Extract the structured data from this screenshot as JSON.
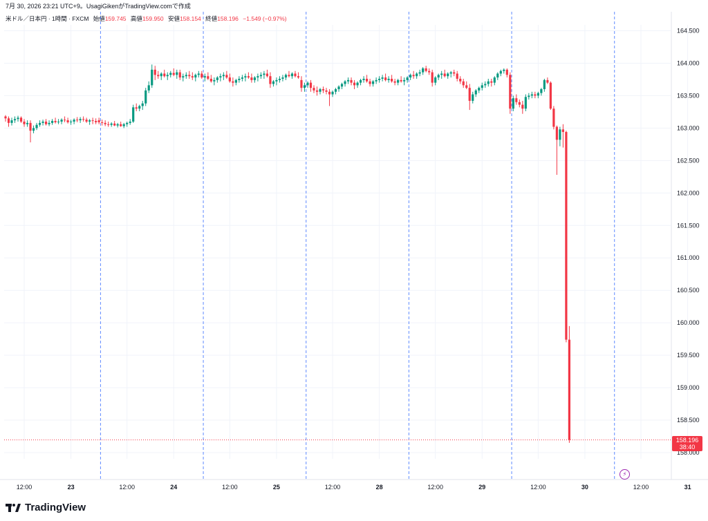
{
  "header": {
    "caption": "7月 30, 2026 23:21 UTC+9。UsagiGikenがTradingView.comで作成",
    "symbol": "米ドル／日本円 · 1時間 · FXCM",
    "open_label": "始値",
    "open_value": "159.745",
    "high_label": "高値",
    "high_value": "159.950",
    "low_label": "安値",
    "low_value": "158.154",
    "close_label": "終値",
    "close_value": "158.196",
    "change": "−1.549 (−0.97%)"
  },
  "price_tag": {
    "price": "158.196",
    "countdown": "38:40"
  },
  "logo_text": "TradingView",
  "colors": {
    "up": "#089981",
    "down": "#f23645",
    "session_line": "#2962ff",
    "text": "#131722",
    "grid": "#f0f3fa"
  },
  "chart_data": {
    "type": "candlestick",
    "y_ticks": [
      "158.000",
      "158.500",
      "159.000",
      "159.500",
      "160.000",
      "160.500",
      "161.000",
      "161.500",
      "162.000",
      "162.500",
      "163.000",
      "163.500",
      "164.000",
      "164.500"
    ],
    "ylim": [
      157.95,
      164.75
    ],
    "x_ticks": [
      {
        "label": "12:00",
        "idx": 6
      },
      {
        "label": "23",
        "idx": 21
      },
      {
        "label": "12:00",
        "idx": 39
      },
      {
        "label": "24",
        "idx": 54
      },
      {
        "label": "12:00",
        "idx": 72
      },
      {
        "label": "25",
        "idx": 87
      },
      {
        "label": "12:00",
        "idx": 105
      },
      {
        "label": "28",
        "idx": 120
      },
      {
        "label": "12:00",
        "idx": 138
      },
      {
        "label": "29",
        "idx": 153
      },
      {
        "label": "12:00",
        "idx": 171
      },
      {
        "label": "30",
        "idx": 186
      },
      {
        "label": "12:00",
        "idx": 204
      },
      {
        "label": "31",
        "idx": 219
      }
    ],
    "session_breaks": [
      30.5,
      63.5,
      96.5,
      129.5,
      162.5,
      195.5
    ],
    "last_price": 158.196,
    "candles": [
      [
        163.18,
        163.2,
        163.1,
        163.15
      ],
      [
        163.15,
        163.18,
        163.02,
        163.08
      ],
      [
        163.08,
        163.16,
        163.04,
        163.12
      ],
      [
        163.12,
        163.18,
        163.08,
        163.14
      ],
      [
        163.14,
        163.19,
        163.1,
        163.16
      ],
      [
        163.16,
        163.18,
        163.08,
        163.1
      ],
      [
        163.1,
        163.14,
        163.02,
        163.06
      ],
      [
        163.06,
        163.12,
        163.02,
        163.08
      ],
      [
        163.08,
        163.12,
        162.78,
        162.96
      ],
      [
        162.96,
        163.04,
        162.92,
        163.0
      ],
      [
        163.0,
        163.08,
        162.97,
        163.05
      ],
      [
        163.05,
        163.12,
        163.02,
        163.08
      ],
      [
        163.08,
        163.13,
        163.04,
        163.1
      ],
      [
        163.1,
        163.14,
        163.04,
        163.06
      ],
      [
        163.06,
        163.12,
        163.03,
        163.08
      ],
      [
        163.08,
        163.14,
        163.05,
        163.11
      ],
      [
        163.11,
        163.16,
        163.07,
        163.09
      ],
      [
        163.09,
        163.14,
        163.06,
        163.1
      ],
      [
        163.1,
        163.15,
        163.06,
        163.13
      ],
      [
        163.13,
        163.18,
        163.09,
        163.12
      ],
      [
        163.12,
        163.16,
        163.07,
        163.09
      ],
      [
        163.09,
        163.13,
        163.05,
        163.1
      ],
      [
        163.1,
        163.15,
        163.06,
        163.13
      ],
      [
        163.13,
        163.17,
        163.09,
        163.12
      ],
      [
        163.12,
        163.17,
        163.08,
        163.14
      ],
      [
        163.14,
        163.18,
        163.1,
        163.13
      ],
      [
        163.13,
        163.16,
        163.08,
        163.1
      ],
      [
        163.1,
        163.14,
        163.05,
        163.12
      ],
      [
        163.12,
        163.16,
        163.06,
        163.11
      ],
      [
        163.11,
        163.15,
        163.06,
        163.09
      ],
      [
        163.12,
        163.16,
        163.06,
        163.09
      ],
      [
        163.09,
        163.13,
        163.04,
        163.08
      ],
      [
        163.08,
        163.12,
        163.03,
        163.06
      ],
      [
        163.06,
        163.1,
        163.02,
        163.05
      ],
      [
        163.05,
        163.09,
        163.02,
        163.07
      ],
      [
        163.07,
        163.11,
        163.03,
        163.04
      ],
      [
        163.04,
        163.08,
        163.01,
        163.06
      ],
      [
        163.06,
        163.1,
        163.02,
        163.03
      ],
      [
        163.03,
        163.08,
        163.0,
        163.06
      ],
      [
        163.06,
        163.1,
        163.02,
        163.08
      ],
      [
        163.08,
        163.14,
        163.05,
        163.1
      ],
      [
        163.1,
        163.36,
        163.08,
        163.32
      ],
      [
        163.32,
        163.38,
        163.26,
        163.3
      ],
      [
        163.3,
        163.36,
        163.26,
        163.34
      ],
      [
        163.34,
        163.42,
        163.28,
        163.38
      ],
      [
        163.38,
        163.62,
        163.34,
        163.58
      ],
      [
        163.58,
        163.72,
        163.54,
        163.66
      ],
      [
        163.66,
        163.98,
        163.62,
        163.9
      ],
      [
        163.9,
        163.96,
        163.74,
        163.82
      ],
      [
        163.82,
        163.88,
        163.76,
        163.8
      ],
      [
        163.8,
        163.86,
        163.74,
        163.84
      ],
      [
        163.84,
        163.9,
        163.78,
        163.8
      ],
      [
        163.8,
        163.86,
        163.74,
        163.82
      ],
      [
        163.82,
        163.88,
        163.78,
        163.85
      ],
      [
        163.85,
        163.92,
        163.8,
        163.82
      ],
      [
        163.82,
        163.9,
        163.76,
        163.86
      ],
      [
        163.86,
        163.9,
        163.74,
        163.78
      ],
      [
        163.78,
        163.84,
        163.72,
        163.8
      ],
      [
        163.8,
        163.86,
        163.76,
        163.82
      ],
      [
        163.82,
        163.88,
        163.76,
        163.8
      ],
      [
        163.8,
        163.86,
        163.74,
        163.78
      ],
      [
        163.78,
        163.84,
        163.72,
        163.82
      ],
      [
        163.82,
        163.88,
        163.78,
        163.84
      ],
      [
        163.84,
        163.88,
        163.76,
        163.78
      ],
      [
        163.78,
        163.84,
        163.72,
        163.8
      ],
      [
        163.8,
        163.86,
        163.74,
        163.76
      ],
      [
        163.76,
        163.82,
        163.7,
        163.72
      ],
      [
        163.72,
        163.78,
        163.66,
        163.74
      ],
      [
        163.74,
        163.8,
        163.7,
        163.78
      ],
      [
        163.78,
        163.84,
        163.72,
        163.8
      ],
      [
        163.8,
        163.86,
        163.74,
        163.82
      ],
      [
        163.82,
        163.88,
        163.76,
        163.78
      ],
      [
        163.78,
        163.84,
        163.7,
        163.72
      ],
      [
        163.72,
        163.78,
        163.64,
        163.7
      ],
      [
        163.7,
        163.76,
        163.66,
        163.74
      ],
      [
        163.74,
        163.8,
        163.7,
        163.76
      ],
      [
        163.76,
        163.82,
        163.72,
        163.78
      ],
      [
        163.78,
        163.84,
        163.72,
        163.8
      ],
      [
        163.8,
        163.86,
        163.76,
        163.78
      ],
      [
        163.78,
        163.84,
        163.7,
        163.74
      ],
      [
        163.74,
        163.8,
        163.7,
        163.78
      ],
      [
        163.78,
        163.84,
        163.72,
        163.8
      ],
      [
        163.8,
        163.86,
        163.76,
        163.82
      ],
      [
        163.82,
        163.88,
        163.76,
        163.84
      ],
      [
        163.84,
        163.9,
        163.78,
        163.8
      ],
      [
        163.8,
        163.86,
        163.62,
        163.68
      ],
      [
        163.68,
        163.74,
        163.64,
        163.72
      ],
      [
        163.72,
        163.78,
        163.66,
        163.74
      ],
      [
        163.74,
        163.8,
        163.7,
        163.76
      ],
      [
        163.76,
        163.82,
        163.72,
        163.78
      ],
      [
        163.78,
        163.84,
        163.74,
        163.82
      ],
      [
        163.82,
        163.88,
        163.78,
        163.8
      ],
      [
        163.8,
        163.86,
        163.76,
        163.84
      ],
      [
        163.84,
        163.88,
        163.78,
        163.8
      ],
      [
        163.8,
        163.86,
        163.76,
        163.78
      ],
      [
        163.74,
        163.8,
        163.56,
        163.62
      ],
      [
        163.62,
        163.7,
        163.56,
        163.66
      ],
      [
        163.66,
        163.72,
        163.62,
        163.7
      ],
      [
        163.7,
        163.74,
        163.56,
        163.62
      ],
      [
        163.62,
        163.66,
        163.54,
        163.58
      ],
      [
        163.58,
        163.64,
        163.5,
        163.56
      ],
      [
        163.56,
        163.62,
        163.52,
        163.6
      ],
      [
        163.6,
        163.64,
        163.54,
        163.58
      ],
      [
        163.58,
        163.62,
        163.52,
        163.56
      ],
      [
        163.56,
        163.6,
        163.34,
        163.52
      ],
      [
        163.52,
        163.58,
        163.48,
        163.56
      ],
      [
        163.56,
        163.62,
        163.52,
        163.6
      ],
      [
        163.6,
        163.66,
        163.56,
        163.64
      ],
      [
        163.64,
        163.7,
        163.6,
        163.68
      ],
      [
        163.68,
        163.74,
        163.64,
        163.72
      ],
      [
        163.72,
        163.78,
        163.68,
        163.74
      ],
      [
        163.74,
        163.78,
        163.66,
        163.7
      ],
      [
        163.7,
        163.74,
        163.6,
        163.66
      ],
      [
        163.66,
        163.72,
        163.62,
        163.7
      ],
      [
        163.7,
        163.76,
        163.66,
        163.74
      ],
      [
        163.74,
        163.8,
        163.7,
        163.76
      ],
      [
        163.76,
        163.82,
        163.7,
        163.72
      ],
      [
        163.72,
        163.76,
        163.64,
        163.68
      ],
      [
        163.68,
        163.74,
        163.64,
        163.72
      ],
      [
        163.72,
        163.78,
        163.68,
        163.74
      ],
      [
        163.74,
        163.8,
        163.7,
        163.76
      ],
      [
        163.76,
        163.82,
        163.72,
        163.78
      ],
      [
        163.78,
        163.84,
        163.72,
        163.74
      ],
      [
        163.74,
        163.8,
        163.7,
        163.76
      ],
      [
        163.76,
        163.82,
        163.7,
        163.72
      ],
      [
        163.72,
        163.76,
        163.66,
        163.7
      ],
      [
        163.7,
        163.76,
        163.66,
        163.74
      ],
      [
        163.74,
        163.8,
        163.7,
        163.72
      ],
      [
        163.72,
        163.78,
        163.66,
        163.74
      ],
      [
        163.74,
        163.8,
        163.7,
        163.78
      ],
      [
        163.78,
        163.84,
        163.74,
        163.82
      ],
      [
        163.82,
        163.88,
        163.76,
        163.8
      ],
      [
        163.8,
        163.86,
        163.76,
        163.84
      ],
      [
        163.84,
        163.9,
        163.8,
        163.86
      ],
      [
        163.86,
        163.94,
        163.82,
        163.92
      ],
      [
        163.92,
        163.96,
        163.86,
        163.88
      ],
      [
        163.88,
        163.92,
        163.82,
        163.86
      ],
      [
        163.86,
        163.9,
        163.64,
        163.7
      ],
      [
        163.7,
        163.8,
        163.66,
        163.78
      ],
      [
        163.78,
        163.84,
        163.74,
        163.82
      ],
      [
        163.82,
        163.88,
        163.76,
        163.84
      ],
      [
        163.84,
        163.9,
        163.78,
        163.8
      ],
      [
        163.8,
        163.86,
        163.76,
        163.84
      ],
      [
        163.84,
        163.88,
        163.78,
        163.86
      ],
      [
        163.86,
        163.9,
        163.8,
        163.84
      ],
      [
        163.84,
        163.88,
        163.72,
        163.76
      ],
      [
        163.76,
        163.8,
        163.68,
        163.72
      ],
      [
        163.72,
        163.76,
        163.62,
        163.66
      ],
      [
        163.66,
        163.72,
        163.6,
        163.62
      ],
      [
        163.62,
        163.68,
        163.28,
        163.42
      ],
      [
        163.42,
        163.56,
        163.38,
        163.52
      ],
      [
        163.52,
        163.6,
        163.48,
        163.58
      ],
      [
        163.58,
        163.64,
        163.54,
        163.62
      ],
      [
        163.62,
        163.7,
        163.58,
        163.66
      ],
      [
        163.66,
        163.72,
        163.62,
        163.68
      ],
      [
        163.68,
        163.76,
        163.64,
        163.72
      ],
      [
        163.72,
        163.76,
        163.64,
        163.7
      ],
      [
        163.7,
        163.8,
        163.66,
        163.78
      ],
      [
        163.78,
        163.86,
        163.74,
        163.84
      ],
      [
        163.84,
        163.9,
        163.8,
        163.88
      ],
      [
        163.88,
        163.92,
        163.84,
        163.9
      ],
      [
        163.9,
        163.92,
        163.78,
        163.82
      ],
      [
        163.82,
        163.86,
        163.22,
        163.3
      ],
      [
        163.3,
        163.5,
        163.26,
        163.46
      ],
      [
        163.46,
        163.52,
        163.36,
        163.4
      ],
      [
        163.4,
        163.44,
        163.32,
        163.36
      ],
      [
        163.36,
        163.42,
        163.22,
        163.3
      ],
      [
        163.3,
        163.52,
        163.26,
        163.48
      ],
      [
        163.48,
        163.54,
        163.44,
        163.5
      ],
      [
        163.5,
        163.56,
        163.46,
        163.52
      ],
      [
        163.52,
        163.56,
        163.46,
        163.5
      ],
      [
        163.5,
        163.56,
        163.46,
        163.54
      ],
      [
        163.54,
        163.62,
        163.5,
        163.6
      ],
      [
        163.6,
        163.76,
        163.56,
        163.74
      ],
      [
        163.74,
        163.78,
        163.68,
        163.7
      ],
      [
        163.7,
        163.72,
        163.28,
        163.3
      ],
      [
        163.3,
        163.34,
        162.98,
        163.02
      ],
      [
        163.02,
        163.04,
        162.28,
        162.82
      ],
      [
        162.82,
        163.02,
        162.72,
        162.98
      ],
      [
        162.98,
        163.06,
        162.7,
        162.94
      ],
      [
        162.94,
        162.96,
        159.7,
        159.74
      ],
      [
        159.74,
        159.95,
        158.15,
        158.196
      ]
    ]
  }
}
